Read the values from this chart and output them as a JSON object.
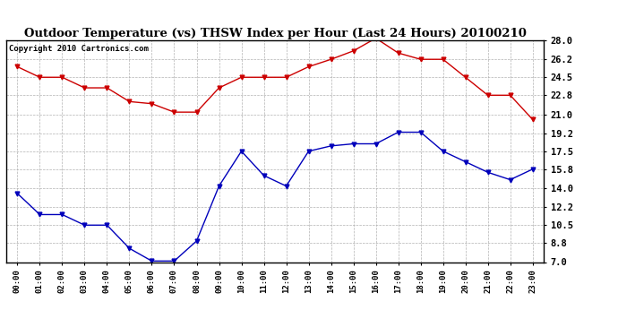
{
  "title": "Outdoor Temperature (vs) THSW Index per Hour (Last 24 Hours) 20100210",
  "copyright": "Copyright 2010 Cartronics.com",
  "hours": [
    "00:00",
    "01:00",
    "02:00",
    "03:00",
    "04:00",
    "05:00",
    "06:00",
    "07:00",
    "08:00",
    "09:00",
    "10:00",
    "11:00",
    "12:00",
    "13:00",
    "14:00",
    "15:00",
    "16:00",
    "17:00",
    "18:00",
    "19:00",
    "20:00",
    "21:00",
    "22:00",
    "23:00"
  ],
  "temp_blue": [
    13.5,
    11.5,
    11.5,
    10.5,
    10.5,
    8.3,
    7.1,
    7.1,
    9.0,
    14.2,
    17.5,
    15.2,
    14.2,
    17.5,
    18.0,
    18.2,
    18.2,
    19.3,
    19.3,
    17.5,
    16.5,
    15.5,
    14.8,
    15.8
  ],
  "temp_red": [
    25.5,
    24.5,
    24.5,
    23.5,
    23.5,
    22.2,
    22.0,
    21.2,
    21.2,
    23.5,
    24.5,
    24.5,
    24.5,
    25.5,
    26.2,
    27.0,
    28.2,
    26.8,
    26.2,
    26.2,
    24.5,
    22.8,
    22.8,
    20.5
  ],
  "ylim_min": 7.0,
  "ylim_max": 28.0,
  "yticks": [
    7.0,
    8.8,
    10.5,
    12.2,
    14.0,
    15.8,
    17.5,
    19.2,
    21.0,
    22.8,
    24.5,
    26.2,
    28.0
  ],
  "blue_color": "#0000bb",
  "red_color": "#cc0000",
  "bg_color": "#ffffff",
  "grid_color": "#aaaaaa",
  "title_fontsize": 9.5,
  "copyright_fontsize": 6.5
}
